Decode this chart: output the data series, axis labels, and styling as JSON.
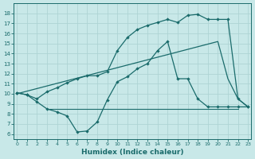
{
  "bg_color": "#c8e8e8",
  "grid_color": "#aed4d4",
  "line_color": "#1a6b6b",
  "xlabel": "Humidex (Indice chaleur)",
  "ylim": [
    5.5,
    19.0
  ],
  "xlim": [
    -0.3,
    23.3
  ],
  "yticks": [
    6,
    7,
    8,
    9,
    10,
    11,
    12,
    13,
    14,
    15,
    16,
    17,
    18
  ],
  "xticks": [
    0,
    1,
    2,
    3,
    4,
    5,
    6,
    7,
    8,
    9,
    10,
    11,
    12,
    13,
    14,
    15,
    16,
    17,
    18,
    19,
    20,
    21,
    22,
    23
  ],
  "line_straight_x": [
    0,
    20,
    21,
    22,
    23
  ],
  "line_straight_y": [
    10.0,
    15.2,
    11.5,
    9.5,
    8.7
  ],
  "line_wavy_x": [
    0,
    1,
    2,
    3,
    4,
    5,
    6,
    7,
    8,
    9,
    10,
    11,
    12,
    13,
    14,
    15,
    16,
    17,
    18,
    19,
    20,
    21,
    22,
    23
  ],
  "line_wavy_y": [
    10.1,
    9.9,
    9.2,
    8.5,
    8.2,
    7.8,
    6.2,
    6.3,
    7.2,
    9.4,
    11.2,
    11.7,
    12.5,
    13.0,
    14.3,
    15.2,
    11.5,
    11.5,
    9.5,
    8.7,
    8.7,
    8.7,
    8.7,
    8.7
  ],
  "line_steep_x": [
    0,
    1,
    2,
    3,
    4,
    5,
    6,
    7,
    8,
    9,
    10,
    11,
    12,
    13,
    14,
    15,
    16,
    17,
    18,
    19,
    20,
    21,
    22,
    23
  ],
  "line_steep_y": [
    10.1,
    9.9,
    9.5,
    10.2,
    10.6,
    11.1,
    11.5,
    11.8,
    11.8,
    12.2,
    14.3,
    15.6,
    16.4,
    16.8,
    17.1,
    17.4,
    17.1,
    17.8,
    17.9,
    17.4,
    17.4,
    17.4,
    9.5,
    8.7
  ],
  "hline_x": [
    3,
    22
  ],
  "hline_y": [
    8.5,
    8.5
  ]
}
